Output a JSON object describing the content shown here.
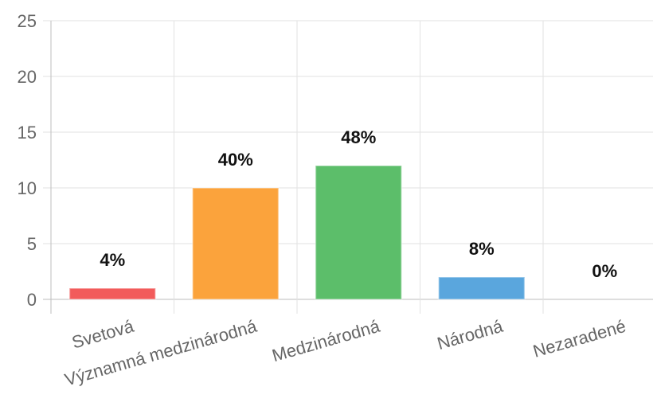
{
  "chart_data": {
    "type": "bar",
    "categories": [
      "Svetová",
      "Významná medzinárodná",
      "Medzinárodná",
      "Národná",
      "Nezaradené"
    ],
    "values": [
      1,
      10,
      12,
      2,
      0
    ],
    "data_labels": [
      "4%",
      "40%",
      "48%",
      "8%",
      "0%"
    ],
    "colors": [
      "#f25b5b",
      "#fba33c",
      "#5cbe6a",
      "#5aa6dd",
      "#cccccc"
    ],
    "title": "",
    "xlabel": "",
    "ylabel": "",
    "ylim": [
      0,
      25
    ],
    "yticks": [
      "0",
      "5",
      "10",
      "15",
      "20",
      "25"
    ],
    "grid": true,
    "legend": "none"
  }
}
